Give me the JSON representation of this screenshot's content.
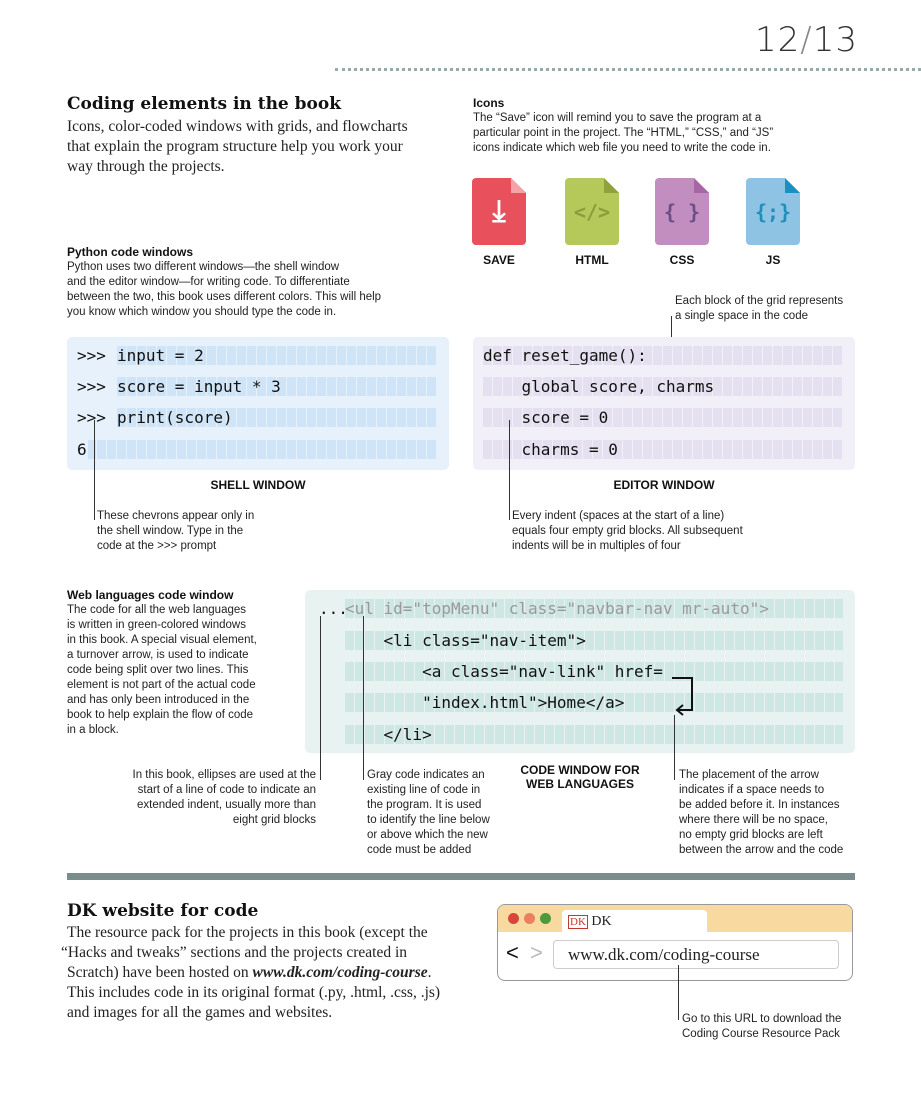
{
  "page_numbers": {
    "left": "12",
    "sep": "/",
    "right": "13"
  },
  "intro": {
    "title": "Coding elements in the book",
    "lines": [
      "Icons, color-coded windows with grids, and flowcharts",
      "that explain the program structure help you work your",
      "way through the projects."
    ]
  },
  "icons_section": {
    "title": "Icons",
    "lines": [
      "The “Save” icon will remind you to save the program at a",
      "particular point in the project. The “HTML,” “CSS,” and “JS”",
      "icons indicate which web file you need to write the code in."
    ],
    "icons": [
      {
        "label": "SAVE",
        "glyph": "⤓",
        "name": "save-icon",
        "color": "#e8505b"
      },
      {
        "label": "HTML",
        "glyph": "</>",
        "name": "html-icon",
        "color": "#b5c85a"
      },
      {
        "label": "CSS",
        "glyph": "{ }",
        "name": "css-icon",
        "color": "#c28ec0"
      },
      {
        "label": "JS",
        "glyph": "{;}",
        "name": "js-icon",
        "color": "#8fc3e3"
      }
    ]
  },
  "python": {
    "title": "Python code windows",
    "lines": [
      "Python uses two different windows—the shell window",
      "and the editor window—for writing code. To differentiate",
      "between the two, this book uses different colors. This will help",
      "you know which window you should type the code in."
    ]
  },
  "grid_note": [
    "Each block of the grid represents",
    "a single space in the code"
  ],
  "shell": {
    "label": "SHELL WINDOW",
    "rows": [
      {
        "prompt": ">>> ",
        "code": "input = 2"
      },
      {
        "prompt": ">>> ",
        "code": "score = input * 3"
      },
      {
        "prompt": ">>> ",
        "code": "print(score)"
      },
      {
        "prompt": "",
        "code": "6"
      }
    ],
    "note": [
      "These chevrons appear only in",
      "the shell window. Type in the",
      "code at the >>> prompt"
    ]
  },
  "editor": {
    "label": "EDITOR WINDOW",
    "rows": [
      "def reset_game():",
      "    global score, charms",
      "    score = 0",
      "    charms = 0"
    ],
    "note": [
      "Every indent (spaces at the start of a line)",
      "equals four empty grid blocks. All subsequent",
      "indents will be in multiples of four"
    ]
  },
  "web": {
    "title": "Web languages code window",
    "lines": [
      "The code for all the web languages",
      "is written in green-colored windows",
      "in this book. A special visual element,",
      "a turnover arrow, is used to indicate",
      "code being split over two lines. This",
      "element is not part of the actual code",
      "and has only been introduced in the",
      "book to help explain the flow of code",
      "in a block."
    ],
    "ellipsis": "...",
    "rows": [
      "<ul id=\"topMenu\" class=\"navbar-nav mr-auto\">",
      "    <li class=\"nav-item\">",
      "        <a class=\"nav-link\" href=",
      "        \"index.html\">Home</a>",
      "    </li>"
    ],
    "label": [
      "CODE WINDOW FOR",
      "WEB LANGUAGES"
    ],
    "note_ellipsis": [
      "In this book, ellipses are used at the",
      "start of a line of code to indicate an",
      "extended indent, usually more than",
      "eight grid blocks"
    ],
    "note_gray": [
      "Gray code indicates an",
      "existing line of code in",
      "the program. It is used",
      "to identify the line below",
      "or above which the new",
      "code must be added"
    ],
    "note_arrow": [
      "The placement of the arrow",
      "indicates if a space needs to",
      "be added before it. In instances",
      "where there will be no space,",
      "no empty grid blocks are left",
      "between the arrow and the code"
    ]
  },
  "dk": {
    "title": "DK website for code",
    "lines": [
      "The resource pack for the projects in this book (except the",
      "“Hacks and tweaks” sections and the projects created in",
      "Scratch) have been hosted on "
    ],
    "url_bold": "www.dk.com/coding-course",
    "after_url": ".",
    "lines2": [
      "This includes code in its original format (.py, .html, .css, .js)",
      "and images for all the games and websites."
    ],
    "browser": {
      "tab_logo": "DK",
      "tab_title": "DK",
      "url": "www.dk.com/coding-course",
      "back": "<",
      "forward": ">"
    },
    "note": [
      "Go to this URL to download the",
      "Coding Course Resource Pack"
    ]
  },
  "colors": {
    "shell": "#e6f1fb",
    "editor": "#f1eff7",
    "web": "#e8f3f1",
    "separator": "#7a8c8c",
    "browser_frame": "#f8d9a0"
  }
}
